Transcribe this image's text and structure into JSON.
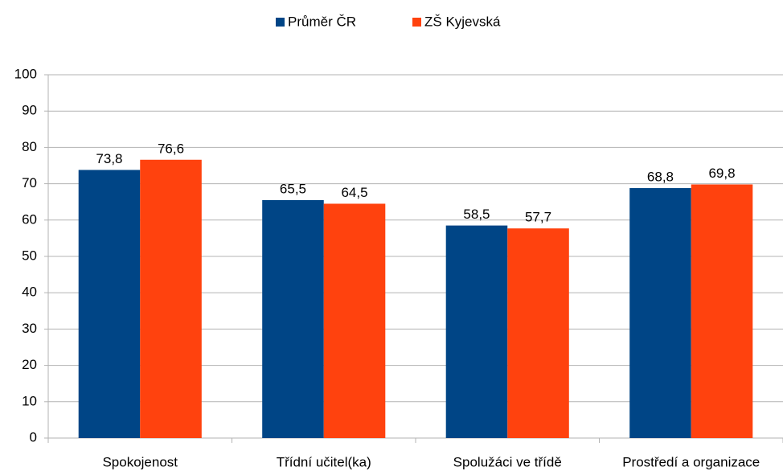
{
  "chart_data": {
    "type": "bar",
    "categories": [
      "Spokojenost",
      "Třídní učitel(ka)",
      "Spolužáci ve třídě",
      "Prostředí a organizace"
    ],
    "series": [
      {
        "name": "Průměr ČR",
        "color": "#004586",
        "values": [
          73.8,
          65.5,
          58.5,
          68.8
        ],
        "value_labels": [
          "73,8",
          "65,5",
          "58,5",
          "68,8"
        ]
      },
      {
        "name": "ZŠ Kyjevská",
        "color": "#ff420e",
        "values": [
          76.6,
          64.5,
          57.7,
          69.8
        ],
        "value_labels": [
          "76,6",
          "64,5",
          "57,7",
          "69,8"
        ]
      }
    ],
    "ylim": [
      0,
      100
    ],
    "yticks": [
      0,
      10,
      20,
      30,
      40,
      50,
      60,
      70,
      80,
      90,
      100
    ],
    "grid": true,
    "legend": "top"
  }
}
